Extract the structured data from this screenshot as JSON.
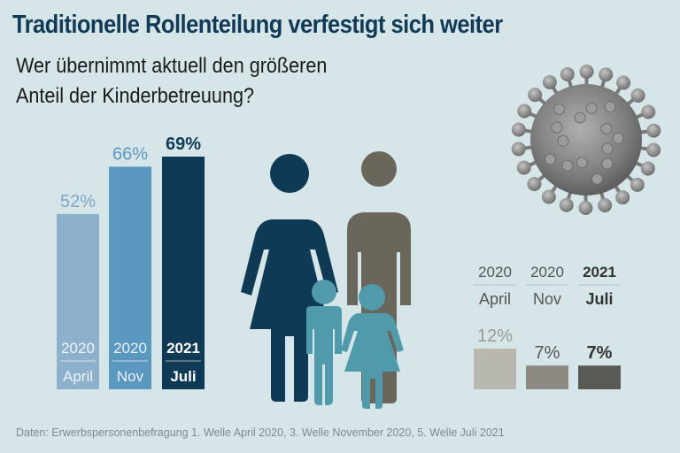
{
  "title": "Traditionelle Rollenteilung verfestigt sich weiter",
  "subtitle_line1": "Wer übernimmt aktuell den größeren",
  "subtitle_line2": "Anteil der Kinderbetreuung?",
  "source": "Daten: Erwerbspersonenbefragung 1. Welle April 2020, 3. Welle November 2020, 5. Welle Juli 2021",
  "colors": {
    "women": [
      "#8db0cc",
      "#5b98c0",
      "#0f3a55"
    ],
    "men": [
      "#b9b8ae",
      "#8d8a83",
      "#5b5953"
    ],
    "text_light_women": [
      "#7fa6c4",
      "#5b98c0",
      "#0f3a55"
    ],
    "text_men": [
      "#9a9a95",
      "#555555",
      "#333333"
    ]
  },
  "chart_data": [
    {
      "type": "bar",
      "title": "Frauen",
      "categories": [
        {
          "year": "2020",
          "month": "April"
        },
        {
          "year": "2020",
          "month": "Nov"
        },
        {
          "year": "2021",
          "month": "Juli"
        }
      ],
      "values": [
        52,
        66,
        69
      ],
      "value_labels": [
        "52%",
        "66%",
        "69%"
      ],
      "ylim": [
        0,
        100
      ]
    },
    {
      "type": "bar",
      "title": "Männer",
      "categories": [
        {
          "year": "2020",
          "month": "April"
        },
        {
          "year": "2020",
          "month": "Nov"
        },
        {
          "year": "2021",
          "month": "Juli"
        }
      ],
      "values": [
        12,
        7,
        7
      ],
      "value_labels": [
        "12%",
        "7%",
        "7%"
      ],
      "ylim": [
        0,
        100
      ]
    }
  ]
}
